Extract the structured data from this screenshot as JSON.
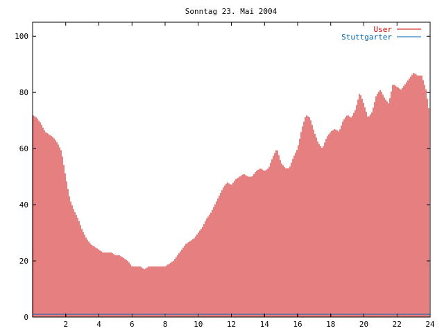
{
  "chart_data": {
    "type": "bar",
    "title": "Sonntag 23. Mai 2004",
    "xlabel": "",
    "ylabel": "",
    "xlim": [
      0,
      24
    ],
    "ylim": [
      0,
      105
    ],
    "x_ticks": [
      2,
      4,
      6,
      8,
      10,
      12,
      14,
      16,
      18,
      20,
      22,
      24
    ],
    "y_ticks": [
      0,
      20,
      40,
      60,
      80,
      100
    ],
    "x_tick_labels": [
      "2",
      "4",
      "6",
      "8",
      "10",
      "12",
      "14",
      "16",
      "18",
      "20",
      "22",
      "24"
    ],
    "y_tick_labels": [
      "0",
      "20",
      "40",
      "60",
      "80",
      "100"
    ],
    "legend_position": "top-right",
    "grid": false,
    "series": [
      {
        "name": "User",
        "color": "#cc0000",
        "points": [
          [
            0.0,
            72
          ],
          [
            0.25,
            71
          ],
          [
            0.5,
            69
          ],
          [
            0.75,
            66
          ],
          [
            1.0,
            65
          ],
          [
            1.25,
            64
          ],
          [
            1.5,
            62
          ],
          [
            1.75,
            59
          ],
          [
            2.0,
            50
          ],
          [
            2.25,
            42
          ],
          [
            2.5,
            38
          ],
          [
            2.75,
            35
          ],
          [
            3.0,
            31
          ],
          [
            3.25,
            28
          ],
          [
            3.5,
            26
          ],
          [
            3.75,
            25
          ],
          [
            4.0,
            24
          ],
          [
            4.25,
            23
          ],
          [
            4.5,
            23
          ],
          [
            4.75,
            23
          ],
          [
            5.0,
            22
          ],
          [
            5.25,
            22
          ],
          [
            5.5,
            21
          ],
          [
            5.75,
            20
          ],
          [
            6.0,
            18
          ],
          [
            6.25,
            18
          ],
          [
            6.5,
            18
          ],
          [
            6.75,
            17
          ],
          [
            7.0,
            18
          ],
          [
            7.25,
            18
          ],
          [
            7.5,
            18
          ],
          [
            7.75,
            18
          ],
          [
            8.0,
            18
          ],
          [
            8.25,
            19
          ],
          [
            8.5,
            20
          ],
          [
            8.75,
            22
          ],
          [
            9.0,
            24
          ],
          [
            9.25,
            26
          ],
          [
            9.5,
            27
          ],
          [
            9.75,
            28
          ],
          [
            10.0,
            30
          ],
          [
            10.25,
            32
          ],
          [
            10.5,
            35
          ],
          [
            10.75,
            37
          ],
          [
            11.0,
            40
          ],
          [
            11.25,
            43
          ],
          [
            11.5,
            46
          ],
          [
            11.75,
            48
          ],
          [
            12.0,
            47
          ],
          [
            12.25,
            49
          ],
          [
            12.5,
            50
          ],
          [
            12.75,
            51
          ],
          [
            13.0,
            50
          ],
          [
            13.25,
            50
          ],
          [
            13.5,
            52
          ],
          [
            13.75,
            53
          ],
          [
            14.0,
            52
          ],
          [
            14.25,
            53
          ],
          [
            14.5,
            57
          ],
          [
            14.75,
            60
          ],
          [
            15.0,
            55
          ],
          [
            15.25,
            53
          ],
          [
            15.5,
            53
          ],
          [
            15.75,
            57
          ],
          [
            16.0,
            60
          ],
          [
            16.25,
            67
          ],
          [
            16.5,
            72
          ],
          [
            16.75,
            71
          ],
          [
            17.0,
            66
          ],
          [
            17.25,
            62
          ],
          [
            17.5,
            60
          ],
          [
            17.75,
            64
          ],
          [
            18.0,
            66
          ],
          [
            18.25,
            67
          ],
          [
            18.5,
            66
          ],
          [
            18.75,
            70
          ],
          [
            19.0,
            72
          ],
          [
            19.25,
            71
          ],
          [
            19.5,
            74
          ],
          [
            19.75,
            80
          ],
          [
            20.0,
            76
          ],
          [
            20.25,
            71
          ],
          [
            20.5,
            73
          ],
          [
            20.75,
            79
          ],
          [
            21.0,
            81
          ],
          [
            21.25,
            78
          ],
          [
            21.5,
            76
          ],
          [
            21.75,
            83
          ],
          [
            22.0,
            82
          ],
          [
            22.25,
            81
          ],
          [
            22.5,
            83
          ],
          [
            22.75,
            85
          ],
          [
            23.0,
            87
          ],
          [
            23.25,
            86
          ],
          [
            23.5,
            86
          ],
          [
            23.75,
            81
          ],
          [
            24.0,
            71
          ]
        ]
      },
      {
        "name": "Stuttgarter",
        "color": "#0066b3",
        "points": [
          [
            0,
            1
          ],
          [
            24,
            1
          ]
        ]
      }
    ]
  }
}
